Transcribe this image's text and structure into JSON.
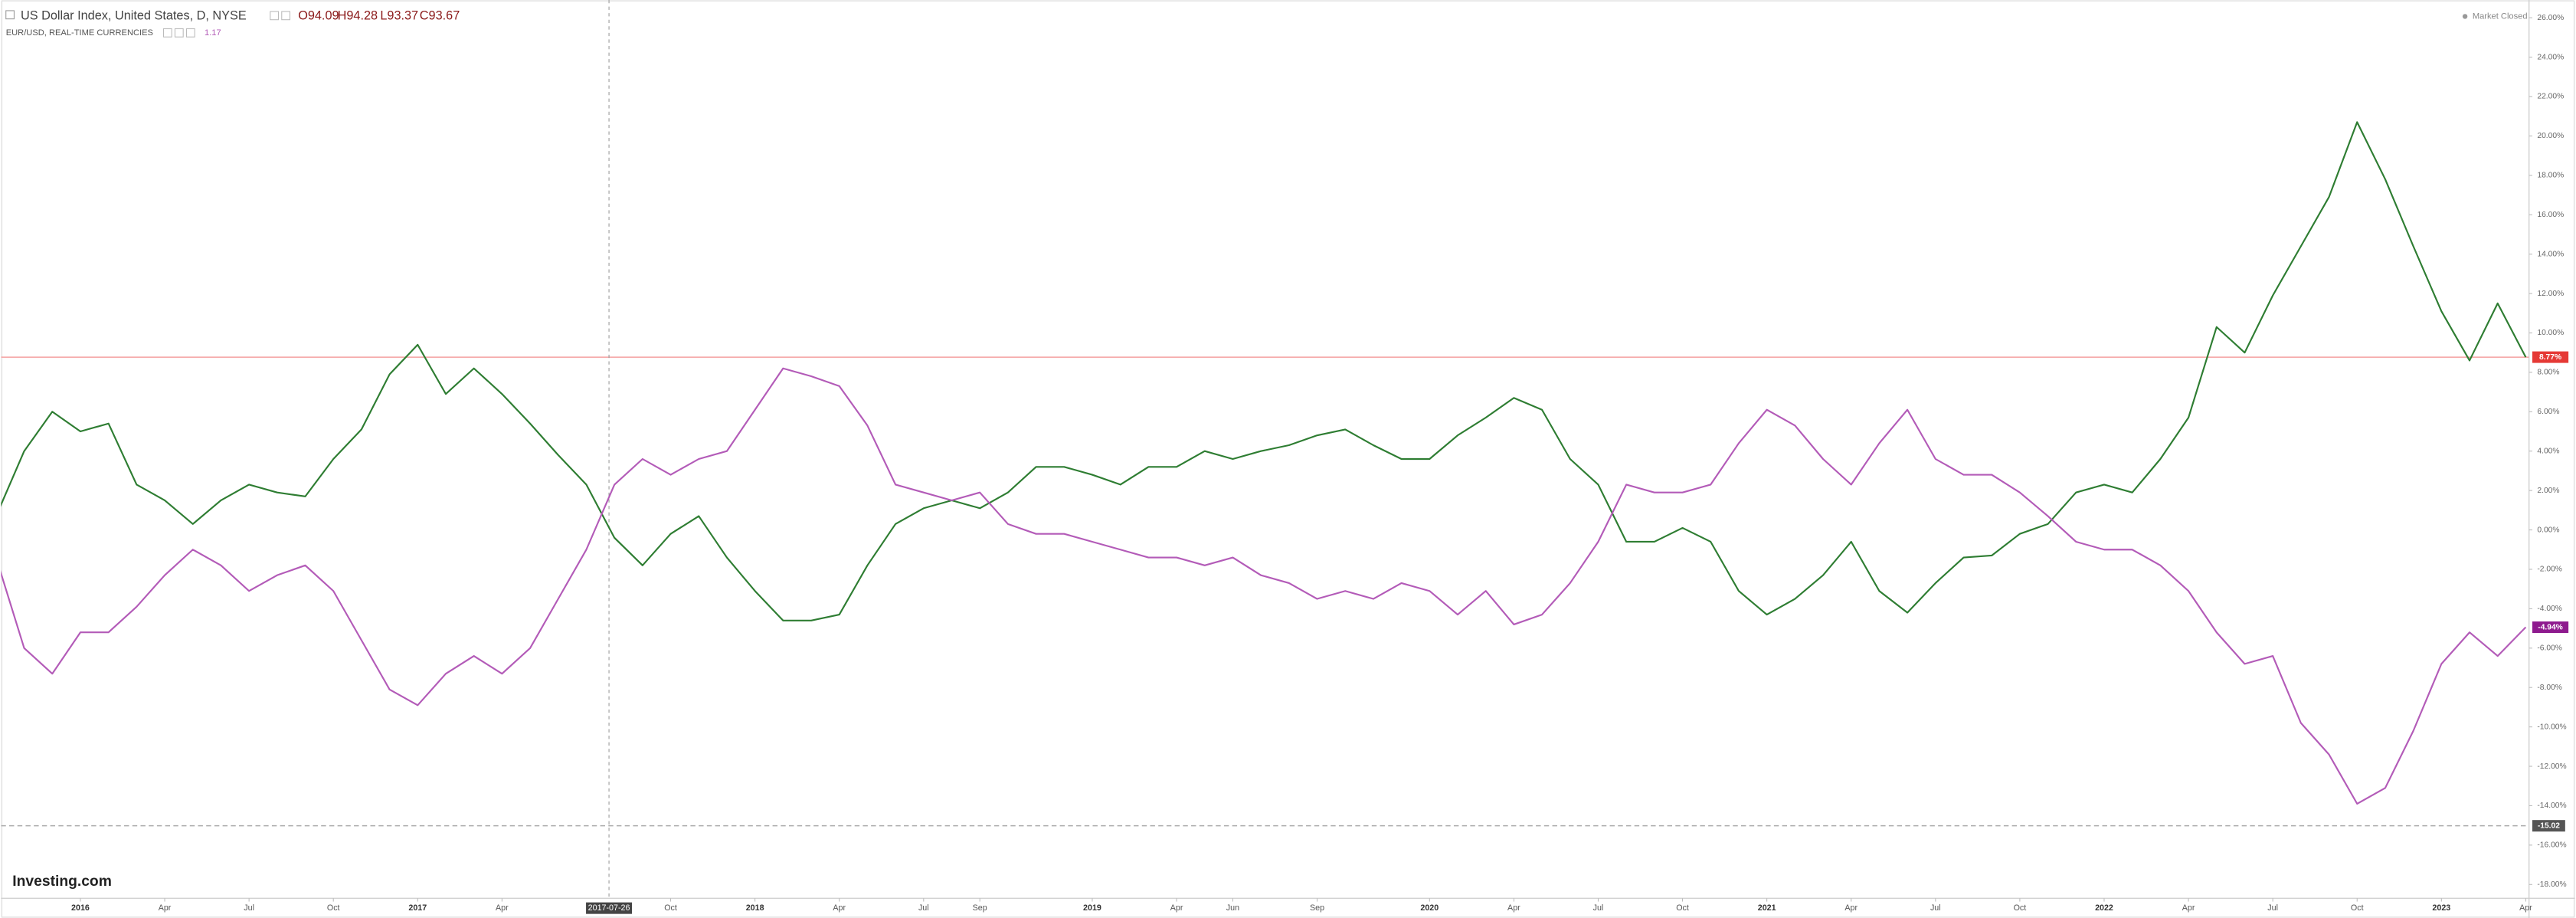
{
  "header": {
    "title": "US Dollar Index, United States, D, NYSE",
    "ohlc": [
      "O94.09",
      "H94.28",
      "L93.37",
      "C93.67"
    ],
    "compare_name": "EUR/USD, REAL-TIME CURRENCIES",
    "compare_value": "1.17",
    "status": "Market Closed",
    "brand": "Investing.com"
  },
  "chart_data": {
    "type": "line",
    "categories": [
      null,
      null,
      null,
      "2016",
      null,
      null,
      "Apr",
      null,
      null,
      "Jul",
      null,
      null,
      "Oct",
      null,
      null,
      "2017",
      null,
      null,
      "Apr",
      null,
      null,
      null,
      null,
      null,
      "Oct",
      null,
      null,
      "2018",
      null,
      null,
      "Apr",
      null,
      null,
      "Jul",
      null,
      "Sep",
      null,
      null,
      null,
      "2019",
      null,
      null,
      "Apr",
      null,
      "Jun",
      null,
      null,
      "Sep",
      null,
      null,
      null,
      "2020",
      null,
      null,
      "Apr",
      null,
      null,
      "Jul",
      null,
      null,
      "Oct",
      null,
      null,
      "2021",
      null,
      null,
      "Apr",
      null,
      null,
      "Jul",
      null,
      null,
      "Oct",
      null,
      null,
      "2022",
      null,
      null,
      "Apr",
      null,
      null,
      "Jul",
      null,
      null,
      "Oct",
      null,
      null,
      "2023",
      null,
      null,
      "Apr"
    ],
    "series": [
      {
        "name": "US Dollar Index",
        "color": "#2e7d32",
        "last_label": "8.77%",
        "label_color": "#e53935",
        "values": [
          0.7,
          4,
          6,
          5,
          5.4,
          2.3,
          1.5,
          0.3,
          1.5,
          2.3,
          1.9,
          1.7,
          3.6,
          5.1,
          7.9,
          9.4,
          6.9,
          8.2,
          6.9,
          5.4,
          3.8,
          2.3,
          -0.4,
          -1.8,
          -0.2,
          0.7,
          -1.4,
          -3.1,
          -4.6,
          -4.6,
          -4.3,
          -1.8,
          0.3,
          1.1,
          1.5,
          1.1,
          1.9,
          3.2,
          3.2,
          2.8,
          2.3,
          3.2,
          3.2,
          4.0,
          3.6,
          4.0,
          4.3,
          4.8,
          5.1,
          4.3,
          3.6,
          3.6,
          4.8,
          5.7,
          6.7,
          6.1,
          3.6,
          2.3,
          -0.6,
          -0.6,
          0.1,
          -0.6,
          -3.1,
          -4.3,
          -3.5,
          -2.3,
          -0.6,
          -3.1,
          -4.2,
          -2.7,
          -1.4,
          -1.3,
          -0.2,
          0.3,
          1.9,
          2.3,
          1.9,
          3.6,
          5.7,
          10.3,
          9.0,
          11.9,
          14.4,
          16.9,
          20.7,
          17.8,
          14.4,
          11.1,
          8.6,
          11.5,
          8.77
        ]
      },
      {
        "name": "EUR/USD",
        "color": "#b35bb8",
        "last_label": "-4.94%",
        "label_color": "#8e1a8e",
        "values": [
          -1.4,
          -6.0,
          -7.3,
          -5.2,
          -5.2,
          -3.9,
          -2.3,
          -1.0,
          -1.8,
          -3.1,
          -2.3,
          -1.8,
          -3.1,
          -5.6,
          -8.1,
          -8.9,
          -7.3,
          -6.4,
          -7.3,
          -6.0,
          -3.5,
          -1.0,
          2.3,
          3.6,
          2.8,
          3.6,
          4.0,
          6.1,
          8.2,
          7.8,
          7.3,
          5.3,
          2.3,
          1.9,
          1.5,
          1.9,
          0.3,
          -0.2,
          -0.2,
          -0.6,
          -1.0,
          -1.4,
          -1.4,
          -1.8,
          -1.4,
          -2.3,
          -2.7,
          -3.5,
          -3.1,
          -3.5,
          -2.7,
          -3.1,
          -4.3,
          -3.1,
          -4.8,
          -4.3,
          -2.7,
          -0.6,
          2.3,
          1.9,
          1.9,
          2.3,
          4.4,
          6.1,
          5.3,
          3.6,
          2.3,
          4.4,
          6.1,
          3.6,
          2.8,
          2.8,
          1.9,
          0.7,
          -0.6,
          -1.0,
          -1.0,
          -1.8,
          -3.1,
          -5.2,
          -6.8,
          -6.4,
          -9.8,
          -11.4,
          -13.9,
          -13.1,
          -10.2,
          -6.8,
          -5.2,
          -6.4,
          -4.94
        ]
      }
    ],
    "ylim": [
      -18.7,
      26.9
    ],
    "yticks": [
      {
        "value": 26,
        "label": "26.00%"
      },
      {
        "value": 24,
        "label": "24.00%"
      },
      {
        "value": 22,
        "label": "22.00%"
      },
      {
        "value": 20,
        "label": "20.00%"
      },
      {
        "value": 18,
        "label": "18.00%"
      },
      {
        "value": 16,
        "label": "16.00%"
      },
      {
        "value": 14,
        "label": "14.00%"
      },
      {
        "value": 12,
        "label": "12.00%"
      },
      {
        "value": 10,
        "label": "10.00%"
      },
      {
        "value": 8,
        "label": "8.00%"
      },
      {
        "value": 6,
        "label": "6.00%"
      },
      {
        "value": 4,
        "label": "4.00%"
      },
      {
        "value": 2,
        "label": "2.00%"
      },
      {
        "value": 0,
        "label": "0.00%"
      },
      {
        "value": -2,
        "label": "-2.00%"
      },
      {
        "value": -4,
        "label": "-4.00%"
      },
      {
        "value": -6,
        "label": "-6.00%"
      },
      {
        "value": -8,
        "label": "-8.00%"
      },
      {
        "value": -10,
        "label": "-10.00%"
      },
      {
        "value": -12,
        "label": "-12.00%"
      },
      {
        "value": -14,
        "label": "-14.00%"
      },
      {
        "value": -16,
        "label": "-16.00%"
      },
      {
        "value": -18,
        "label": "-18.00%"
      }
    ],
    "reference_lines": [
      {
        "value": 8.77,
        "color": "#f4a0a0",
        "dashed": false
      },
      {
        "value": -15.02,
        "label": "-15.02",
        "color": "#aaaaaa",
        "dashed": true
      }
    ],
    "crosshair": {
      "label": "2017-07-26"
    },
    "grid": false
  }
}
